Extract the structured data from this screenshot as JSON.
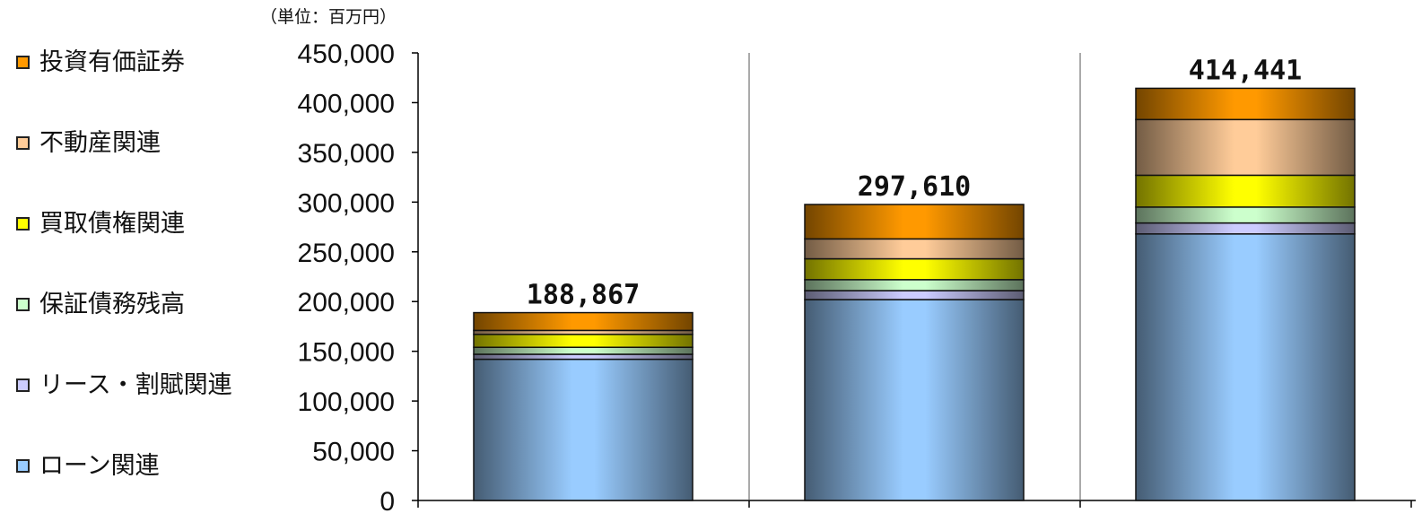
{
  "unit_label": "（単位：百万円）",
  "legend": [
    {
      "label": "投資有価証券",
      "color": "#ff9900"
    },
    {
      "label": "不動産関連",
      "color": "#ffcc99"
    },
    {
      "label": "買取債権関連",
      "color": "#ffff00"
    },
    {
      "label": "保証債務残高",
      "color": "#ccffcc"
    },
    {
      "label": "リース・割賦関連",
      "color": "#ccccff"
    },
    {
      "label": "ローン関連",
      "color": "#99ccff"
    }
  ],
  "chart_data": {
    "type": "bar",
    "stacked": true,
    "categories": [
      "",
      "",
      ""
    ],
    "ylim": [
      0,
      450000
    ],
    "yticks": [
      "0",
      "50,000",
      "100,000",
      "150,000",
      "200,000",
      "250,000",
      "300,000",
      "350,000",
      "400,000",
      "450,000"
    ],
    "ytick_values": [
      0,
      50000,
      100000,
      150000,
      200000,
      250000,
      300000,
      350000,
      400000,
      450000
    ],
    "totals": [
      188867,
      297610,
      414441
    ],
    "total_labels": [
      "188,867",
      "297,610",
      "414,441"
    ],
    "series": [
      {
        "name": "ローン関連",
        "color": "#99ccff",
        "values": [
          142000,
          202000,
          268000
        ]
      },
      {
        "name": "リース・割賦関連",
        "color": "#ccccff",
        "values": [
          5000,
          9000,
          11000
        ]
      },
      {
        "name": "保証債務残高",
        "color": "#ccffcc",
        "values": [
          7000,
          11000,
          16000
        ]
      },
      {
        "name": "買取債権関連",
        "color": "#ffff00",
        "values": [
          13000,
          21000,
          32000
        ]
      },
      {
        "name": "不動産関連",
        "color": "#ffcc99",
        "values": [
          4000,
          20000,
          56000
        ]
      },
      {
        "name": "投資有価証券",
        "color": "#ff9900",
        "values": [
          17867,
          34610,
          31441
        ]
      }
    ]
  }
}
